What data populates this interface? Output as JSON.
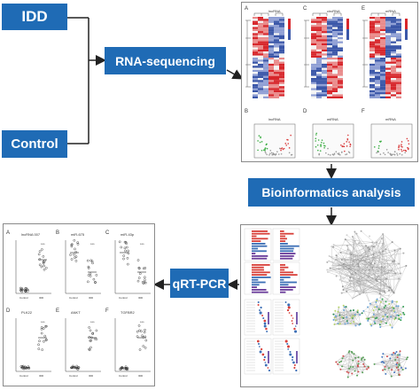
{
  "boxes": {
    "idd": "IDD",
    "control": "Control",
    "rna_seq": "RNA-sequencing",
    "bioinfo": "Bioinformatics analysis",
    "qrt_pcr": "qRT-PCR"
  },
  "heatmap_panel": {
    "labels": [
      "A",
      "C",
      "E",
      "B",
      "D",
      "F"
    ],
    "titles": [
      "lncRNA",
      "circRNA",
      "mRNA",
      "lncRNA",
      "miRNA",
      "mRNA"
    ]
  },
  "pcr_panel": {
    "labels": [
      "A",
      "B",
      "C",
      "D",
      "E",
      "F"
    ],
    "titles": [
      "lncRNA 007",
      "miR-675",
      "miR-43p",
      "PLK22",
      "ANKT",
      "TGFBR2"
    ],
    "group_labels": [
      "Control",
      "IDD"
    ]
  },
  "colors": {
    "box_blue": "#1f6bb5",
    "heat_red": "#d7262b",
    "heat_blue": "#3a56a8",
    "volcano_red": "#d93a3a",
    "volcano_green": "#3cae44"
  }
}
